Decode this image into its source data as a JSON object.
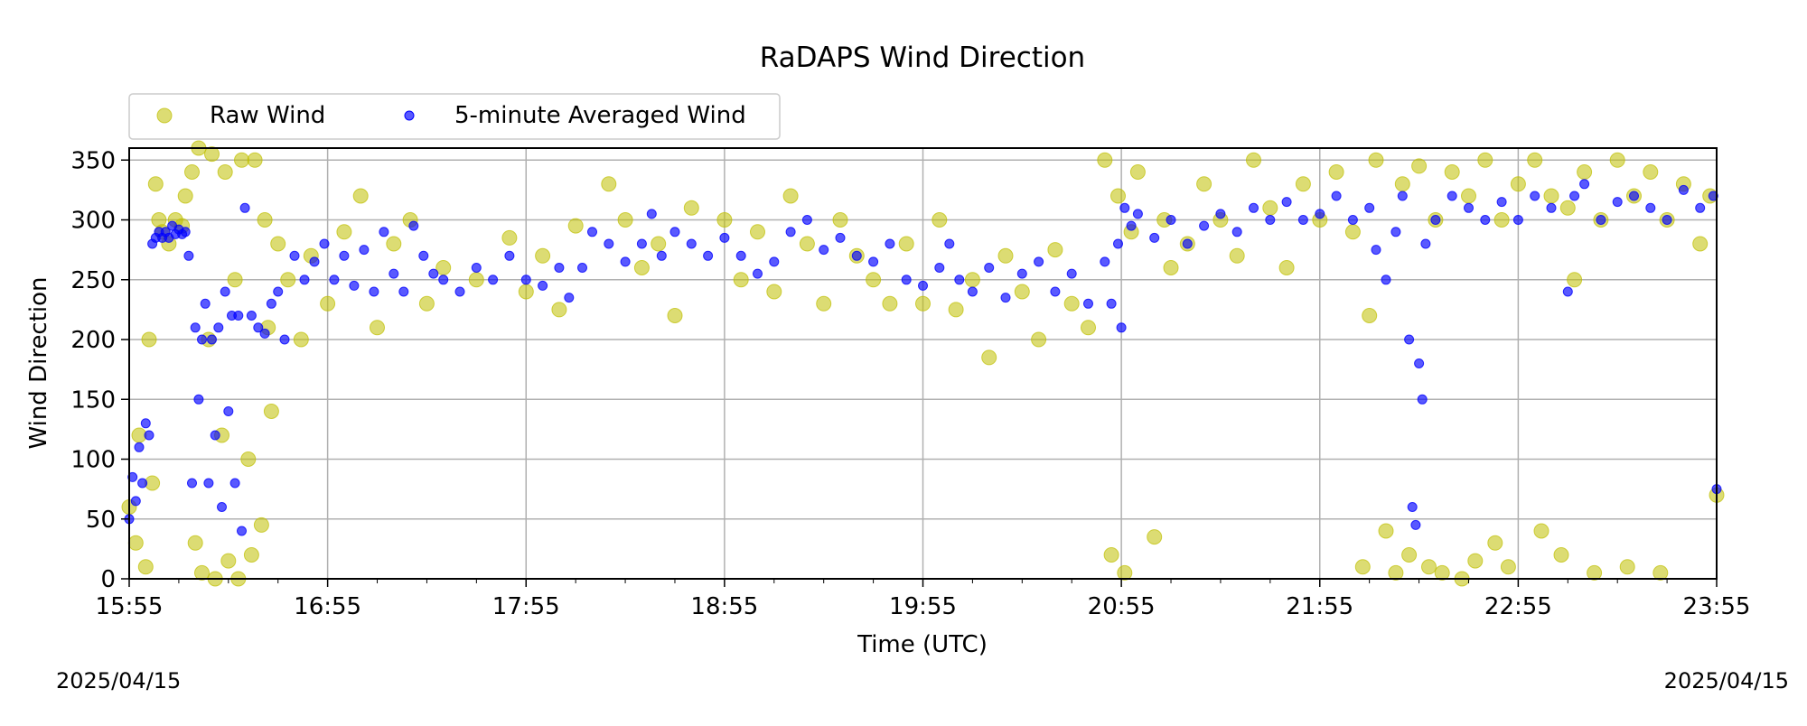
{
  "chart_data": {
    "type": "scatter",
    "title": "RaDAPS Wind Direction",
    "xlabel": "Time (UTC)",
    "ylabel": "Wind Direction",
    "x_tick_labels": [
      "15:55",
      "16:55",
      "17:55",
      "18:55",
      "19:55",
      "20:55",
      "21:55",
      "22:55",
      "23:55"
    ],
    "x_range": [
      "15:55",
      "23:55"
    ],
    "ylim": [
      0,
      360
    ],
    "y_ticks": [
      0,
      50,
      100,
      150,
      200,
      250,
      300,
      350
    ],
    "grid": true,
    "legend": {
      "placement": "top-left, above plot",
      "ncol": 2
    },
    "date_left": "2025/04/15",
    "date_right": "2025/04/15",
    "series": [
      {
        "name": "Raw Wind",
        "color": "#bfbf00",
        "marker": "circle",
        "opacity": 0.55,
        "points": [
          [
            "15:55",
            60
          ],
          [
            "15:57",
            30
          ],
          [
            "15:58",
            120
          ],
          [
            "16:00",
            10
          ],
          [
            "16:01",
            200
          ],
          [
            "16:02",
            80
          ],
          [
            "16:03",
            330
          ],
          [
            "16:04",
            300
          ],
          [
            "16:05",
            290
          ],
          [
            "16:07",
            280
          ],
          [
            "16:09",
            300
          ],
          [
            "16:11",
            295
          ],
          [
            "16:12",
            320
          ],
          [
            "16:14",
            340
          ],
          [
            "16:15",
            30
          ],
          [
            "16:16",
            360
          ],
          [
            "16:17",
            5
          ],
          [
            "16:19",
            200
          ],
          [
            "16:20",
            355
          ],
          [
            "16:21",
            0
          ],
          [
            "16:23",
            120
          ],
          [
            "16:24",
            340
          ],
          [
            "16:25",
            15
          ],
          [
            "16:27",
            250
          ],
          [
            "16:28",
            0
          ],
          [
            "16:29",
            350
          ],
          [
            "16:31",
            100
          ],
          [
            "16:32",
            20
          ],
          [
            "16:33",
            350
          ],
          [
            "16:35",
            45
          ],
          [
            "16:36",
            300
          ],
          [
            "16:37",
            210
          ],
          [
            "16:38",
            140
          ],
          [
            "16:40",
            280
          ],
          [
            "16:43",
            250
          ],
          [
            "16:47",
            200
          ],
          [
            "16:50",
            270
          ],
          [
            "16:55",
            230
          ],
          [
            "17:00",
            290
          ],
          [
            "17:05",
            320
          ],
          [
            "17:10",
            210
          ],
          [
            "17:15",
            280
          ],
          [
            "17:20",
            300
          ],
          [
            "17:25",
            230
          ],
          [
            "17:30",
            260
          ],
          [
            "17:40",
            250
          ],
          [
            "17:50",
            285
          ],
          [
            "17:55",
            240
          ],
          [
            "18:00",
            270
          ],
          [
            "18:05",
            225
          ],
          [
            "18:10",
            295
          ],
          [
            "18:20",
            330
          ],
          [
            "18:25",
            300
          ],
          [
            "18:30",
            260
          ],
          [
            "18:35",
            280
          ],
          [
            "18:40",
            220
          ],
          [
            "18:45",
            310
          ],
          [
            "18:55",
            300
          ],
          [
            "19:00",
            250
          ],
          [
            "19:05",
            290
          ],
          [
            "19:10",
            240
          ],
          [
            "19:15",
            320
          ],
          [
            "19:20",
            280
          ],
          [
            "19:25",
            230
          ],
          [
            "19:30",
            300
          ],
          [
            "19:35",
            270
          ],
          [
            "19:40",
            250
          ],
          [
            "19:45",
            230
          ],
          [
            "19:50",
            280
          ],
          [
            "19:55",
            230
          ],
          [
            "20:00",
            300
          ],
          [
            "20:05",
            225
          ],
          [
            "20:10",
            250
          ],
          [
            "20:15",
            185
          ],
          [
            "20:20",
            270
          ],
          [
            "20:25",
            240
          ],
          [
            "20:30",
            200
          ],
          [
            "20:35",
            275
          ],
          [
            "20:40",
            230
          ],
          [
            "20:45",
            210
          ],
          [
            "20:50",
            350
          ],
          [
            "20:52",
            20
          ],
          [
            "20:54",
            320
          ],
          [
            "20:56",
            5
          ],
          [
            "20:58",
            290
          ],
          [
            "21:00",
            340
          ],
          [
            "21:05",
            35
          ],
          [
            "21:08",
            300
          ],
          [
            "21:10",
            260
          ],
          [
            "21:15",
            280
          ],
          [
            "21:20",
            330
          ],
          [
            "21:25",
            300
          ],
          [
            "21:30",
            270
          ],
          [
            "21:35",
            350
          ],
          [
            "21:40",
            310
          ],
          [
            "21:45",
            260
          ],
          [
            "21:50",
            330
          ],
          [
            "21:55",
            300
          ],
          [
            "22:00",
            340
          ],
          [
            "22:05",
            290
          ],
          [
            "22:08",
            10
          ],
          [
            "22:10",
            220
          ],
          [
            "22:12",
            350
          ],
          [
            "22:15",
            40
          ],
          [
            "22:18",
            5
          ],
          [
            "22:20",
            330
          ],
          [
            "22:22",
            20
          ],
          [
            "22:25",
            345
          ],
          [
            "22:28",
            10
          ],
          [
            "22:30",
            300
          ],
          [
            "22:32",
            5
          ],
          [
            "22:35",
            340
          ],
          [
            "22:38",
            0
          ],
          [
            "22:40",
            320
          ],
          [
            "22:42",
            15
          ],
          [
            "22:45",
            350
          ],
          [
            "22:48",
            30
          ],
          [
            "22:50",
            300
          ],
          [
            "22:52",
            10
          ],
          [
            "22:55",
            330
          ],
          [
            "23:00",
            350
          ],
          [
            "23:02",
            40
          ],
          [
            "23:05",
            320
          ],
          [
            "23:08",
            20
          ],
          [
            "23:10",
            310
          ],
          [
            "23:12",
            250
          ],
          [
            "23:15",
            340
          ],
          [
            "23:18",
            5
          ],
          [
            "23:20",
            300
          ],
          [
            "23:25",
            350
          ],
          [
            "23:28",
            10
          ],
          [
            "23:30",
            320
          ],
          [
            "23:35",
            340
          ],
          [
            "23:38",
            5
          ],
          [
            "23:40",
            300
          ],
          [
            "23:45",
            330
          ],
          [
            "23:50",
            280
          ],
          [
            "23:53",
            320
          ],
          [
            "23:55",
            70
          ]
        ]
      },
      {
        "name": "5-minute Averaged Wind",
        "color": "#0000ff",
        "marker": "circle",
        "opacity": 0.65,
        "points": [
          [
            "15:55",
            50
          ],
          [
            "15:56",
            85
          ],
          [
            "15:57",
            65
          ],
          [
            "15:58",
            110
          ],
          [
            "15:59",
            80
          ],
          [
            "16:00",
            130
          ],
          [
            "16:01",
            120
          ],
          [
            "16:02",
            280
          ],
          [
            "16:03",
            285
          ],
          [
            "16:04",
            290
          ],
          [
            "16:05",
            285
          ],
          [
            "16:06",
            290
          ],
          [
            "16:07",
            285
          ],
          [
            "16:08",
            295
          ],
          [
            "16:09",
            288
          ],
          [
            "16:10",
            292
          ],
          [
            "16:11",
            288
          ],
          [
            "16:12",
            290
          ],
          [
            "16:13",
            270
          ],
          [
            "16:14",
            80
          ],
          [
            "16:15",
            210
          ],
          [
            "16:16",
            150
          ],
          [
            "16:17",
            200
          ],
          [
            "16:18",
            230
          ],
          [
            "16:19",
            80
          ],
          [
            "16:20",
            200
          ],
          [
            "16:21",
            120
          ],
          [
            "16:22",
            210
          ],
          [
            "16:23",
            60
          ],
          [
            "16:24",
            240
          ],
          [
            "16:25",
            140
          ],
          [
            "16:26",
            220
          ],
          [
            "16:27",
            80
          ],
          [
            "16:28",
            220
          ],
          [
            "16:29",
            40
          ],
          [
            "16:30",
            310
          ],
          [
            "16:32",
            220
          ],
          [
            "16:34",
            210
          ],
          [
            "16:36",
            205
          ],
          [
            "16:38",
            230
          ],
          [
            "16:40",
            240
          ],
          [
            "16:42",
            200
          ],
          [
            "16:45",
            270
          ],
          [
            "16:48",
            250
          ],
          [
            "16:51",
            265
          ],
          [
            "16:54",
            280
          ],
          [
            "16:57",
            250
          ],
          [
            "17:00",
            270
          ],
          [
            "17:03",
            245
          ],
          [
            "17:06",
            275
          ],
          [
            "17:09",
            240
          ],
          [
            "17:12",
            290
          ],
          [
            "17:15",
            255
          ],
          [
            "17:18",
            240
          ],
          [
            "17:21",
            295
          ],
          [
            "17:24",
            270
          ],
          [
            "17:27",
            255
          ],
          [
            "17:30",
            250
          ],
          [
            "17:35",
            240
          ],
          [
            "17:40",
            260
          ],
          [
            "17:45",
            250
          ],
          [
            "17:50",
            270
          ],
          [
            "17:55",
            250
          ],
          [
            "18:00",
            245
          ],
          [
            "18:05",
            260
          ],
          [
            "18:08",
            235
          ],
          [
            "18:12",
            260
          ],
          [
            "18:15",
            290
          ],
          [
            "18:20",
            280
          ],
          [
            "18:25",
            265
          ],
          [
            "18:30",
            280
          ],
          [
            "18:33",
            305
          ],
          [
            "18:36",
            270
          ],
          [
            "18:40",
            290
          ],
          [
            "18:45",
            280
          ],
          [
            "18:50",
            270
          ],
          [
            "18:55",
            285
          ],
          [
            "19:00",
            270
          ],
          [
            "19:05",
            255
          ],
          [
            "19:10",
            265
          ],
          [
            "19:15",
            290
          ],
          [
            "19:20",
            300
          ],
          [
            "19:25",
            275
          ],
          [
            "19:30",
            285
          ],
          [
            "19:35",
            270
          ],
          [
            "19:40",
            265
          ],
          [
            "19:45",
            280
          ],
          [
            "19:50",
            250
          ],
          [
            "19:55",
            245
          ],
          [
            "20:00",
            260
          ],
          [
            "20:03",
            280
          ],
          [
            "20:06",
            250
          ],
          [
            "20:10",
            240
          ],
          [
            "20:15",
            260
          ],
          [
            "20:20",
            235
          ],
          [
            "20:25",
            255
          ],
          [
            "20:30",
            265
          ],
          [
            "20:35",
            240
          ],
          [
            "20:40",
            255
          ],
          [
            "20:45",
            230
          ],
          [
            "20:50",
            265
          ],
          [
            "20:52",
            230
          ],
          [
            "20:54",
            280
          ],
          [
            "20:55",
            210
          ],
          [
            "20:56",
            310
          ],
          [
            "20:58",
            295
          ],
          [
            "21:00",
            305
          ],
          [
            "21:05",
            285
          ],
          [
            "21:10",
            300
          ],
          [
            "21:15",
            280
          ],
          [
            "21:20",
            295
          ],
          [
            "21:25",
            305
          ],
          [
            "21:30",
            290
          ],
          [
            "21:35",
            310
          ],
          [
            "21:40",
            300
          ],
          [
            "21:45",
            315
          ],
          [
            "21:50",
            300
          ],
          [
            "21:55",
            305
          ],
          [
            "22:00",
            320
          ],
          [
            "22:05",
            300
          ],
          [
            "22:10",
            310
          ],
          [
            "22:12",
            275
          ],
          [
            "22:15",
            250
          ],
          [
            "22:18",
            290
          ],
          [
            "22:20",
            320
          ],
          [
            "22:22",
            200
          ],
          [
            "22:23",
            60
          ],
          [
            "22:24",
            45
          ],
          [
            "22:25",
            180
          ],
          [
            "22:26",
            150
          ],
          [
            "22:27",
            280
          ],
          [
            "22:30",
            300
          ],
          [
            "22:35",
            320
          ],
          [
            "22:40",
            310
          ],
          [
            "22:45",
            300
          ],
          [
            "22:50",
            315
          ],
          [
            "22:55",
            300
          ],
          [
            "23:00",
            320
          ],
          [
            "23:05",
            310
          ],
          [
            "23:10",
            240
          ],
          [
            "23:12",
            320
          ],
          [
            "23:15",
            330
          ],
          [
            "23:20",
            300
          ],
          [
            "23:25",
            315
          ],
          [
            "23:30",
            320
          ],
          [
            "23:35",
            310
          ],
          [
            "23:40",
            300
          ],
          [
            "23:45",
            325
          ],
          [
            "23:50",
            310
          ],
          [
            "23:54",
            320
          ],
          [
            "23:55",
            75
          ]
        ]
      }
    ]
  }
}
